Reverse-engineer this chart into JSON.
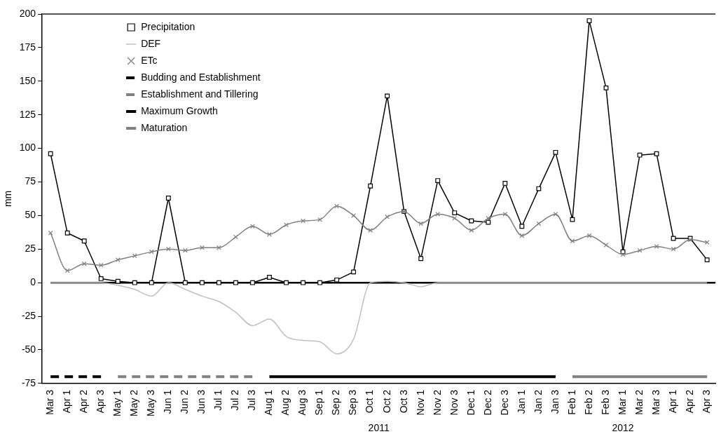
{
  "chart_data": {
    "type": "line",
    "ylabel": "mm",
    "categories": [
      "Mar 3",
      "Apr 1",
      "Apr 2",
      "Apr 3",
      "May 1",
      "May 2",
      "May 3",
      "Jun 1",
      "Jun 2",
      "Jun 3",
      "Jul 1",
      "Jul 2",
      "Jul 3",
      "Aug 1",
      "Aug 2",
      "Aug 3",
      "Sep 1",
      "Sep 2",
      "Sep 3",
      "Oct 1",
      "Oct 2",
      "Oct 3",
      "Nov 1",
      "Nov 2",
      "Nov 3",
      "Dec 1",
      "Dec 2",
      "Dec 3",
      "Jan 1",
      "Jan 2",
      "Jan 3",
      "Feb 1",
      "Feb 2",
      "Feb 3",
      "Mar 1",
      "Mar 2",
      "Mar 3",
      "Apr 1",
      "Apr 2",
      "Apr 3"
    ],
    "series": [
      {
        "name": "Precipitation",
        "color": "#000000",
        "marker": "square",
        "values": [
          96,
          37,
          31,
          3,
          1,
          0,
          0,
          63,
          0,
          0,
          0,
          0,
          0,
          4,
          0,
          0,
          0,
          2,
          8,
          72,
          139,
          53,
          18,
          76,
          52,
          46,
          45,
          74,
          42,
          70,
          97,
          47,
          195,
          145,
          23,
          95,
          96,
          33,
          33,
          17
        ]
      },
      {
        "name": "DEF",
        "color": "#c0c0c0",
        "marker": "none",
        "values": [
          0,
          0,
          0,
          0,
          -2,
          -5,
          -10,
          0,
          -5,
          -10,
          -14,
          -22,
          -32,
          -27,
          -40,
          -43,
          -44,
          -53,
          -42,
          0,
          1,
          0,
          -3,
          0,
          0,
          0,
          0,
          0,
          0,
          0,
          0,
          0,
          0,
          0,
          0,
          0,
          0,
          0,
          0,
          0
        ]
      },
      {
        "name": "ETc",
        "color": "#808080",
        "marker": "cross",
        "values": [
          37,
          9,
          14,
          13,
          17,
          20,
          23,
          25,
          24,
          26,
          26,
          34,
          42,
          36,
          43,
          46,
          47,
          57,
          50,
          39,
          49,
          53,
          44,
          51,
          48,
          39,
          48,
          51,
          35,
          44,
          51,
          31,
          35,
          28,
          21,
          24,
          27,
          25,
          32,
          30
        ]
      },
      {
        "name": "Budding and Establishment",
        "color": "#000000",
        "marker": "none",
        "line_style": "dashed",
        "values": [
          -70,
          -70,
          -70,
          -70,
          null,
          null,
          null,
          null,
          null,
          null,
          null,
          null,
          null,
          null,
          null,
          null,
          null,
          null,
          null,
          null,
          null,
          null,
          null,
          null,
          null,
          null,
          null,
          null,
          null,
          null,
          null,
          null,
          null,
          null,
          null,
          null,
          null,
          null,
          null,
          null
        ]
      },
      {
        "name": "Establishment and Tillering",
        "color": "#808080",
        "marker": "none",
        "line_style": "dashed",
        "values": [
          null,
          null,
          null,
          null,
          -70,
          -70,
          -70,
          -70,
          -70,
          -70,
          -70,
          -70,
          -70,
          null,
          null,
          null,
          null,
          null,
          null,
          null,
          null,
          null,
          null,
          null,
          null,
          null,
          null,
          null,
          null,
          null,
          null,
          null,
          null,
          null,
          null,
          null,
          null,
          null,
          null,
          null
        ]
      },
      {
        "name": "Maximum Growth",
        "color": "#000000",
        "marker": "none",
        "line_style": "solid",
        "values": [
          null,
          null,
          null,
          null,
          null,
          null,
          null,
          null,
          null,
          null,
          null,
          null,
          null,
          -70,
          -70,
          -70,
          -70,
          -70,
          -70,
          -70,
          -70,
          -70,
          -70,
          -70,
          -70,
          -70,
          -70,
          -70,
          -70,
          -70,
          -70,
          null,
          null,
          null,
          null,
          null,
          null,
          null,
          null,
          null
        ]
      },
      {
        "name": "Maturation",
        "color": "#808080",
        "marker": "none",
        "line_style": "solid",
        "values": [
          null,
          null,
          null,
          null,
          null,
          null,
          null,
          null,
          null,
          null,
          null,
          null,
          null,
          null,
          null,
          null,
          null,
          null,
          null,
          null,
          null,
          null,
          null,
          null,
          null,
          null,
          null,
          null,
          null,
          null,
          null,
          -70,
          -70,
          -70,
          -70,
          -70,
          -70,
          -70,
          -70,
          -70
        ]
      }
    ],
    "ylim": [
      -75,
      200
    ],
    "yticks": [
      -75,
      -50,
      -25,
      0,
      25,
      50,
      75,
      100,
      125,
      150,
      175,
      200
    ],
    "ref_lines": [
      {
        "axis": "y",
        "value": 0,
        "color": "#000000"
      }
    ],
    "annotations": [
      "2011",
      "2012"
    ],
    "grid": false,
    "legend": "top left"
  }
}
